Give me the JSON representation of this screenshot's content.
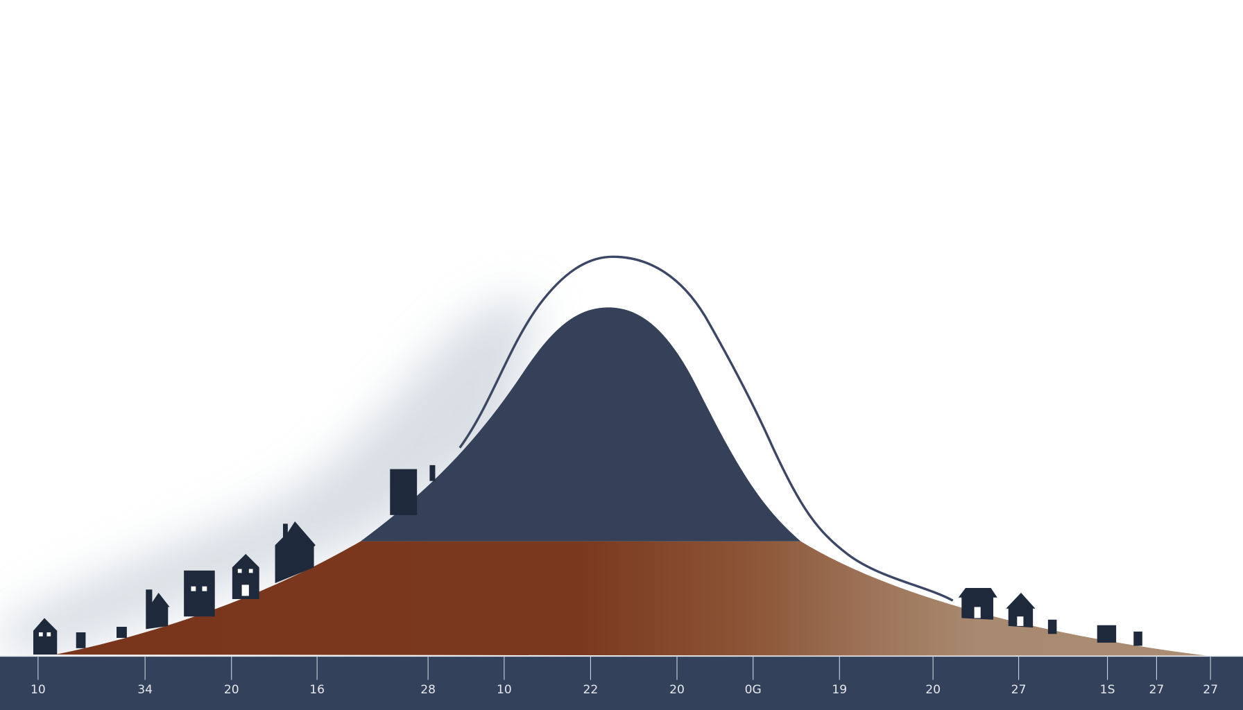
{
  "axis": {
    "labels": [
      "10",
      "34",
      "20",
      "16",
      "28",
      "10",
      "22",
      "20",
      "0G",
      "19",
      "20",
      "27",
      "1S",
      "27",
      "27"
    ]
  }
}
